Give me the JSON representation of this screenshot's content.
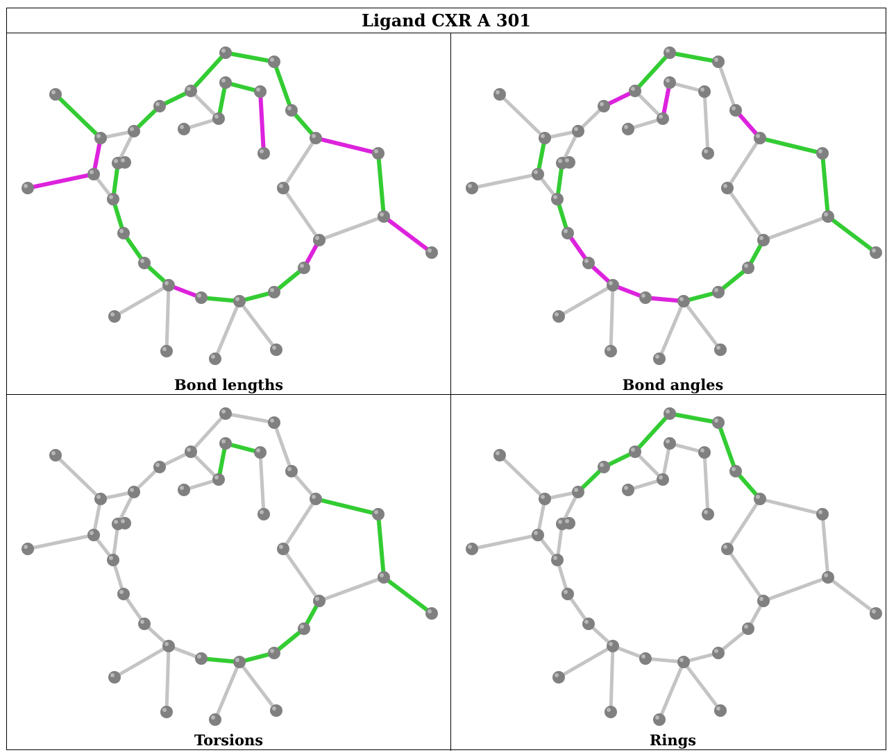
{
  "title": "Ligand CXR A 301",
  "colors": {
    "atom": "#808080",
    "atom_highlight": "#cfcfcf",
    "bond_default": "#c4c4c4",
    "green": "#33cc33",
    "magenta": "#dd22dd"
  },
  "panels": [
    {
      "caption": "Bond lengths",
      "green": [
        [
          0,
          1
        ],
        [
          4,
          5
        ],
        [
          5,
          6
        ],
        [
          6,
          7
        ],
        [
          7,
          8
        ],
        [
          8,
          9
        ],
        [
          9,
          10
        ],
        [
          11,
          12
        ],
        [
          13,
          14
        ],
        [
          15,
          16
        ],
        [
          16,
          17
        ],
        [
          17,
          18
        ],
        [
          19,
          20
        ],
        [
          20,
          21
        ],
        [
          21,
          22
        ],
        [
          22,
          23
        ],
        [
          24,
          25
        ],
        [
          25,
          26
        ],
        [
          26,
          27
        ],
        [
          27,
          28
        ],
        [
          28,
          29
        ],
        [
          31,
          32
        ],
        [
          31,
          34
        ],
        [
          32,
          35
        ],
        [
          33,
          36
        ],
        [
          34,
          36
        ],
        [
          34,
          38
        ],
        [
          35,
          37
        ],
        [
          37,
          38
        ],
        [
          39,
          40
        ],
        [
          40,
          41
        ],
        [
          41,
          42
        ],
        [
          42,
          43
        ],
        [
          43,
          44
        ]
      ],
      "magenta": [
        [
          1,
          2
        ],
        [
          2,
          3
        ],
        [
          3,
          33
        ],
        [
          10,
          11
        ],
        [
          12,
          13
        ],
        [
          14,
          15
        ],
        [
          18,
          19
        ],
        [
          23,
          24
        ],
        [
          26,
          29
        ],
        [
          28,
          30
        ],
        [
          32,
          36
        ],
        [
          35,
          39
        ],
        [
          37,
          38
        ]
      ]
    },
    {
      "caption": "Bond angles",
      "green": [
        [
          1,
          2
        ],
        [
          3,
          4
        ],
        [
          6,
          7
        ],
        [
          7,
          8
        ],
        [
          10,
          11
        ],
        [
          11,
          12
        ],
        [
          12,
          13
        ],
        [
          13,
          14
        ],
        [
          14,
          15
        ],
        [
          15,
          16
        ],
        [
          16,
          17
        ],
        [
          21,
          22
        ],
        [
          22,
          23
        ],
        [
          22,
          24
        ],
        [
          26,
          27
        ],
        [
          31,
          32
        ],
        [
          32,
          35
        ],
        [
          34,
          36
        ],
        [
          35,
          37
        ],
        [
          37,
          38
        ],
        [
          38,
          39
        ],
        [
          39,
          40
        ],
        [
          40,
          41
        ],
        [
          41,
          42
        ],
        [
          42,
          43
        ],
        [
          43,
          44
        ]
      ],
      "magenta": [
        [
          5,
          6
        ],
        [
          6,
          26
        ],
        [
          9,
          10
        ],
        [
          17,
          18
        ],
        [
          18,
          19
        ],
        [
          19,
          20
        ],
        [
          20,
          21
        ],
        [
          23,
          24
        ],
        [
          24,
          25
        ],
        [
          27,
          28
        ],
        [
          27,
          29
        ],
        [
          28,
          30
        ],
        [
          29,
          31
        ],
        [
          33,
          34
        ],
        [
          36,
          37
        ],
        [
          36,
          38
        ]
      ]
    },
    {
      "caption": "Torsions",
      "green": [
        [
          10,
          11
        ],
        [
          11,
          12
        ],
        [
          12,
          13
        ],
        [
          13,
          14
        ],
        [
          14,
          15
        ],
        [
          15,
          16
        ],
        [
          16,
          17
        ],
        [
          17,
          18
        ],
        [
          26,
          27
        ],
        [
          27,
          28
        ],
        [
          28,
          29
        ],
        [
          29,
          30
        ],
        [
          30,
          31
        ],
        [
          31,
          32
        ],
        [
          32,
          33
        ]
      ],
      "magenta": []
    },
    {
      "caption": "Rings",
      "green": [
        [
          4,
          5
        ],
        [
          5,
          6
        ],
        [
          6,
          7
        ],
        [
          7,
          8
        ],
        [
          8,
          9
        ],
        [
          9,
          10
        ],
        [
          10,
          4
        ],
        [
          34,
          35
        ],
        [
          35,
          36
        ],
        [
          36,
          37
        ],
        [
          37,
          38
        ],
        [
          38,
          34
        ],
        [
          40,
          41
        ],
        [
          41,
          42
        ],
        [
          42,
          43
        ],
        [
          43,
          40
        ],
        [
          44,
          45
        ],
        [
          45,
          46
        ],
        [
          46,
          44
        ]
      ],
      "magenta": []
    }
  ]
}
